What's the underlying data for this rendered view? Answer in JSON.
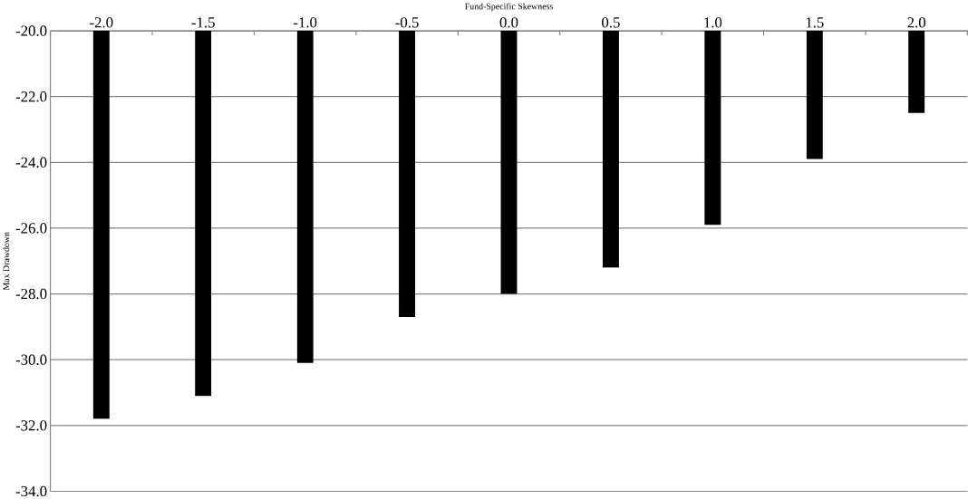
{
  "chart_data": {
    "type": "bar",
    "xlabel": "Fund-Specific Skewness",
    "ylabel": "Max Drawdown",
    "categories": [
      "-2.0",
      "-1.5",
      "-1.0",
      "-0.5",
      "0.0",
      "0.5",
      "1.0",
      "1.5",
      "2.0"
    ],
    "values": [
      -31.8,
      -31.1,
      -30.1,
      -28.7,
      -28.0,
      -27.2,
      -25.9,
      -23.9,
      -22.5
    ],
    "color": "#000000",
    "ylim": [
      -34,
      -20
    ],
    "yticks": [
      {
        "value": -34,
        "label": "-34.0"
      },
      {
        "value": -32,
        "label": "-32.0"
      },
      {
        "value": -30,
        "label": "-30.0"
      },
      {
        "value": -28,
        "label": "-28.0"
      },
      {
        "value": -26,
        "label": "-26.0"
      },
      {
        "value": -24,
        "label": "-24.0"
      },
      {
        "value": -22,
        "label": "-22.0"
      },
      {
        "value": -20,
        "label": "-20.0"
      }
    ],
    "grid": "y"
  }
}
